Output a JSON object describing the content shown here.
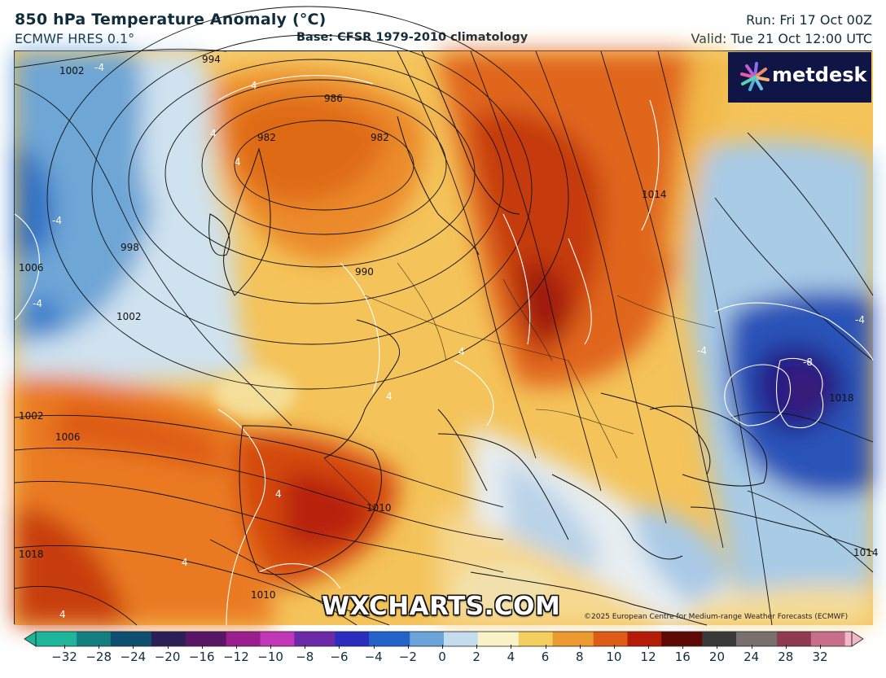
{
  "header": {
    "title": "850 hPa Temperature Anomaly (°C)",
    "model": "ECMWF HRES 0.1°",
    "base": "Base: CFSR 1979-2010 climatology",
    "run": "Run: Fri 17 Oct 00Z",
    "valid": "Valid: Tue 21 Oct 12:00 UTC"
  },
  "logo": {
    "text": "metdesk",
    "icon": "metdesk-flower-icon"
  },
  "watermark": "WXCHARTS.COM",
  "copyright": "©2025 European Centre for Medium-range Weather Forecasts (ECMWF)",
  "map": {
    "isobar_labels": [
      {
        "text": "1002"
      },
      {
        "text": "994"
      },
      {
        "text": "986"
      },
      {
        "text": "982"
      },
      {
        "text": "982"
      },
      {
        "text": "998"
      },
      {
        "text": "1002"
      },
      {
        "text": "990"
      },
      {
        "text": "1006"
      },
      {
        "text": "1002"
      },
      {
        "text": "1010"
      },
      {
        "text": "1018"
      },
      {
        "text": "1014"
      },
      {
        "text": "1018"
      },
      {
        "text": "1006"
      },
      {
        "text": "1014"
      },
      {
        "text": "1010"
      }
    ],
    "anomaly_labels": [
      {
        "text": "-4"
      },
      {
        "text": "-4"
      },
      {
        "text": "-4"
      },
      {
        "text": "-4"
      },
      {
        "text": "-4"
      },
      {
        "text": "-8"
      },
      {
        "text": "4"
      },
      {
        "text": "4"
      },
      {
        "text": "4"
      },
      {
        "text": "4"
      },
      {
        "text": "4"
      },
      {
        "text": "4"
      },
      {
        "text": "4"
      },
      {
        "text": "4"
      }
    ]
  },
  "colorbar": {
    "ticks": [
      "−32",
      "−28",
      "−24",
      "−20",
      "−16",
      "−12",
      "−10",
      "−8",
      "−6",
      "−4",
      "−2",
      "0",
      "2",
      "4",
      "6",
      "8",
      "10",
      "12",
      "16",
      "20",
      "24",
      "28",
      "32"
    ],
    "colors": [
      "#1fb59a",
      "#137f80",
      "#0e4f6f",
      "#2b1f57",
      "#5a1666",
      "#9b1e8f",
      "#c236b8",
      "#6d2aa8",
      "#2a2dbd",
      "#2464c8",
      "#6aa4d8",
      "#c4dcee",
      "#fbf3c8",
      "#f5cf5e",
      "#eb9a30",
      "#de5c14",
      "#b41c07",
      "#5d0a05",
      "#3a3a3a",
      "#7a6f6f",
      "#8f3a52",
      "#c76f8a",
      "#f2b7c8"
    ]
  }
}
